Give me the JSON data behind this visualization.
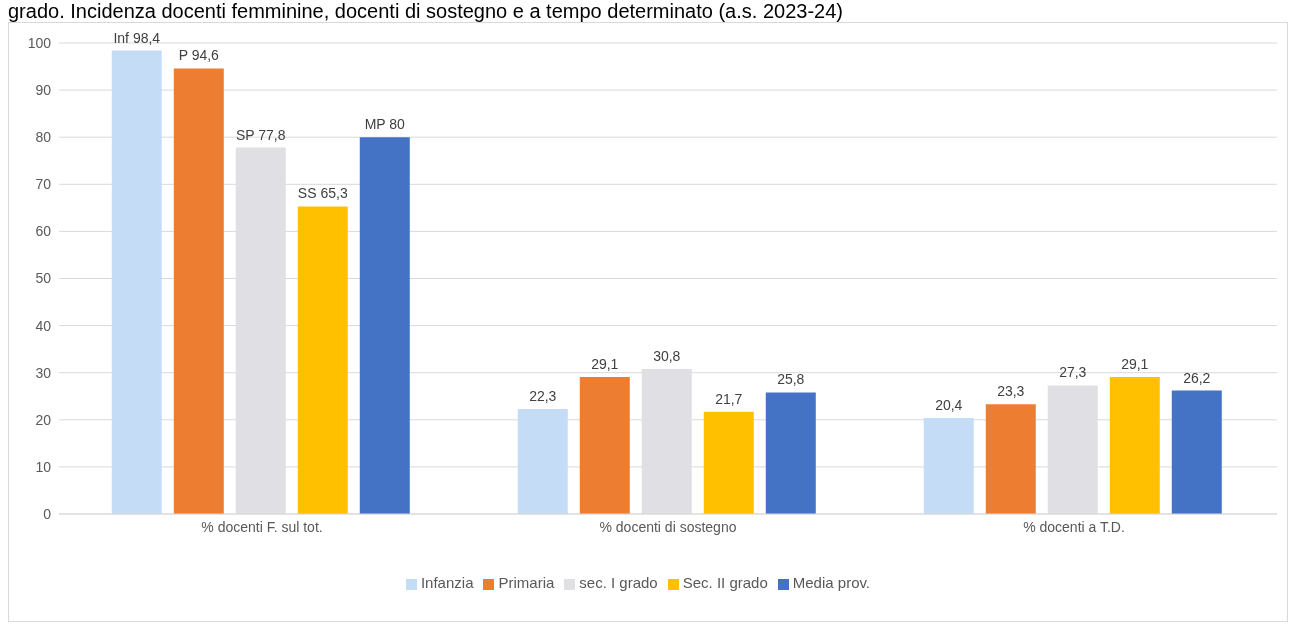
{
  "chart_data": {
    "type": "bar",
    "title": "grado. Incidenza docenti femminine, docenti di sostegno e a tempo determinato (a.s. 2023-24)",
    "categories": [
      "% docenti F. sul tot.",
      "% docenti di sostegno",
      "% docenti a T.D."
    ],
    "series": [
      {
        "name": "Infanzia",
        "color": "#c5dcf7",
        "values": [
          98.4,
          22.3,
          20.4
        ],
        "value_labels": [
          "Inf 98,4",
          "22,3",
          "20,4"
        ]
      },
      {
        "name": "Primaria",
        "color": "#ed7d31",
        "values": [
          94.6,
          29.1,
          23.3
        ],
        "value_labels": [
          "P 94,6",
          "29,1",
          "23,3"
        ]
      },
      {
        "name": "sec. I grado",
        "color": "#e0e0e4",
        "values": [
          77.8,
          30.8,
          27.3
        ],
        "value_labels": [
          "SP 77,8",
          "30,8",
          "27,3"
        ]
      },
      {
        "name": "Sec. II grado",
        "color": "#ffc000",
        "values": [
          65.3,
          21.7,
          29.1
        ],
        "value_labels": [
          "SS 65,3",
          "21,7",
          "29,1"
        ]
      },
      {
        "name": "Media prov.",
        "color": "#4472c4",
        "values": [
          80,
          25.8,
          26.2
        ],
        "value_labels": [
          "MP 80",
          "25,8",
          "26,2"
        ]
      }
    ],
    "ylim": [
      0,
      100
    ],
    "yticks": [
      0,
      10,
      20,
      30,
      40,
      50,
      60,
      70,
      80,
      90,
      100
    ],
    "grid": "y",
    "legend": "bottom"
  }
}
